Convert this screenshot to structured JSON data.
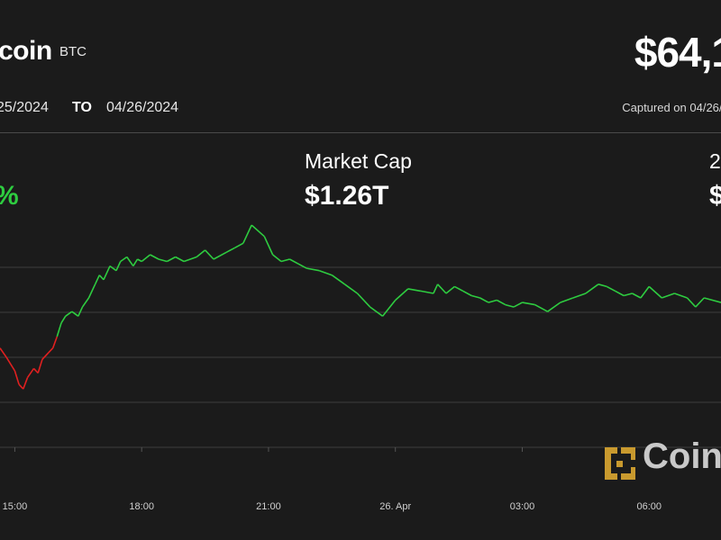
{
  "header": {
    "coin_name": "coin",
    "ticker": "BTC",
    "price": "$64,1",
    "date_from": "25/2024",
    "to_label": "TO",
    "date_to": "04/26/2024",
    "captured": "Captured on 04/26/20"
  },
  "stats": [
    {
      "label": "",
      "value": "%"
    },
    {
      "label": "Market Cap",
      "value": "$1.26T"
    },
    {
      "label": "2",
      "value": "$"
    }
  ],
  "watermark": {
    "text": "Coin",
    "icon": "coindesk-logo-icon"
  },
  "colors": {
    "up": "#2ecc40",
    "down": "#e02020",
    "background": "#1b1b1b",
    "grid": "#3c3c3c"
  },
  "chart_data": {
    "type": "line",
    "title": "",
    "xlabel": "",
    "ylabel": "",
    "x_tick_labels": [
      "15:00",
      "18:00",
      "21:00",
      "26. Apr",
      "03:00",
      "06:00"
    ],
    "x_tick_hours": [
      0,
      3,
      6,
      9,
      12,
      15
    ],
    "x_range_hours": [
      -0.35,
      16.7
    ],
    "y_range": [
      0,
      100
    ],
    "grid": true,
    "series": [
      {
        "x": [
          -0.35,
          -0.2,
          0.0,
          0.1,
          0.2,
          0.3,
          0.45,
          0.55,
          0.65,
          0.8,
          0.9,
          1.0,
          1.1,
          1.2,
          1.35,
          1.5,
          1.6,
          1.75,
          1.9,
          2.0,
          2.1,
          2.25,
          2.4,
          2.5,
          2.65,
          2.8,
          2.9,
          3.0,
          3.2,
          3.4,
          3.6,
          3.8,
          4.0,
          4.3,
          4.5,
          4.7,
          5.0,
          5.2,
          5.4,
          5.6,
          5.9,
          6.1,
          6.3,
          6.5,
          6.7,
          6.9,
          7.2,
          7.5,
          7.8,
          8.1,
          8.4,
          8.7,
          9.0,
          9.3,
          9.6,
          9.9,
          10.0,
          10.2,
          10.4,
          10.6,
          10.8,
          11.0,
          11.2,
          11.4,
          11.6,
          11.8,
          12.0,
          12.3,
          12.6,
          12.9,
          13.2,
          13.5,
          13.8,
          14.0,
          14.2,
          14.4,
          14.6,
          14.8,
          15.0,
          15.3,
          15.6,
          15.9,
          16.1,
          16.3,
          16.7
        ],
        "y": [
          44,
          40,
          34,
          28,
          26,
          31,
          35,
          33,
          39,
          42,
          44,
          49,
          55,
          58,
          60,
          58,
          62,
          66,
          72,
          76,
          74,
          80,
          78,
          82,
          84,
          80,
          83,
          82,
          85,
          83,
          82,
          84,
          82,
          84,
          87,
          83,
          86,
          88,
          90,
          98,
          93,
          85,
          82,
          83,
          81,
          79,
          78,
          76,
          72,
          68,
          62,
          58,
          65,
          70,
          69,
          68,
          72,
          68,
          71,
          69,
          67,
          66,
          64,
          65,
          63,
          62,
          64,
          63,
          60,
          64,
          66,
          68,
          72,
          71,
          69,
          67,
          68,
          66,
          71,
          66,
          68,
          66,
          62,
          66,
          64
        ],
        "color_note": "red below the opening level, green above"
      }
    ]
  }
}
